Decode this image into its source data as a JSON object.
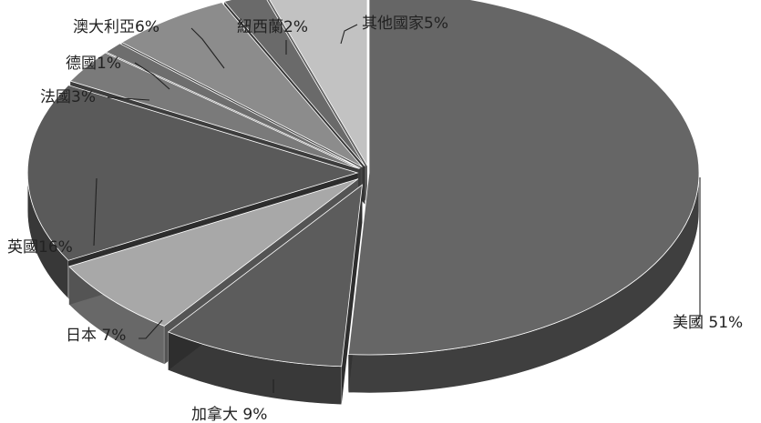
{
  "chart_data": {
    "type": "pie",
    "style": "3d-exploded",
    "legend": "none",
    "slices": [
      {
        "name": "美國",
        "value": 51,
        "label": "美國 51%",
        "color": "#666666"
      },
      {
        "name": "加拿大",
        "value": 9,
        "label": "加拿大 9%",
        "color": "#5c5c5c"
      },
      {
        "name": "日本",
        "value": 7,
        "label": "日本 7%",
        "color": "#a8a8a8"
      },
      {
        "name": "英國",
        "value": 16,
        "label": "英國16%",
        "color": "#5a5a5a"
      },
      {
        "name": "法國",
        "value": 3,
        "label": "法國3%",
        "color": "#7a7a7a"
      },
      {
        "name": "德國",
        "value": 1,
        "label": "德國1%",
        "color": "#6e6e6e"
      },
      {
        "name": "澳大利亞",
        "value": 6,
        "label": "澳大利亞6%",
        "color": "#8c8c8c"
      },
      {
        "name": "紐西蘭",
        "value": 2,
        "label": "紐西蘭2%",
        "color": "#6a6a6a"
      },
      {
        "name": "其他國家",
        "value": 5,
        "label": "其他國家5%",
        "color": "#c2c2c2"
      }
    ]
  }
}
